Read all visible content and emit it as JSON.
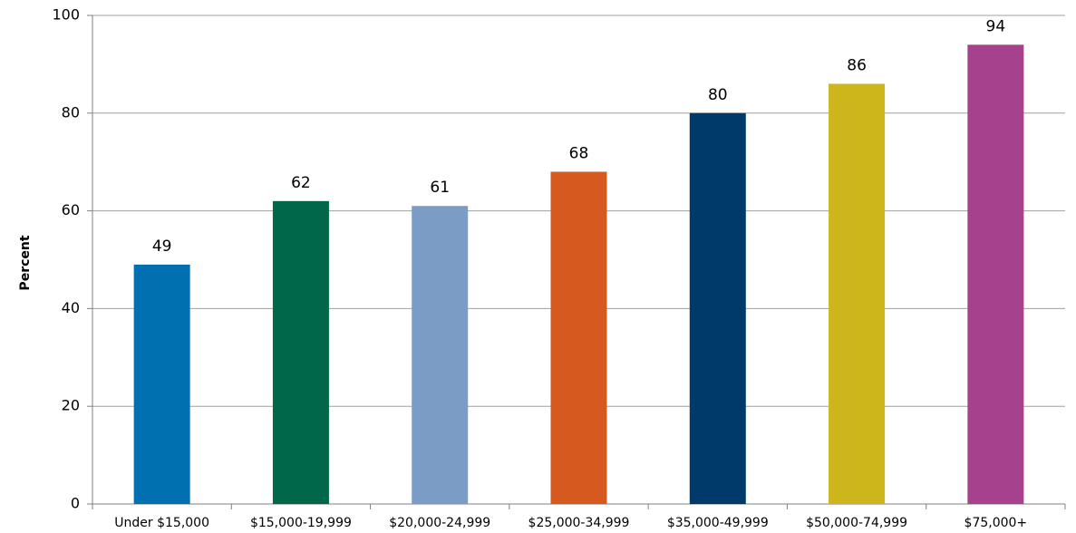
{
  "chart_data": {
    "type": "bar",
    "ylabel": "Percent",
    "categories": [
      "Under $15,000",
      "$15,000-19,999",
      "$20,000-24,999",
      "$25,000-34,999",
      "$35,000-49,999",
      "$50,000-74,999",
      "$75,000+"
    ],
    "values": [
      49,
      62,
      61,
      68,
      80,
      86,
      94
    ],
    "colors": [
      "#0070b0",
      "#00674a",
      "#7b9cc4",
      "#d65a1f",
      "#003a6b",
      "#cdb51c",
      "#a6418d"
    ],
    "ylim": [
      0,
      100
    ],
    "yticks": [
      0,
      20,
      40,
      60,
      80,
      100
    ],
    "grid": true
  }
}
